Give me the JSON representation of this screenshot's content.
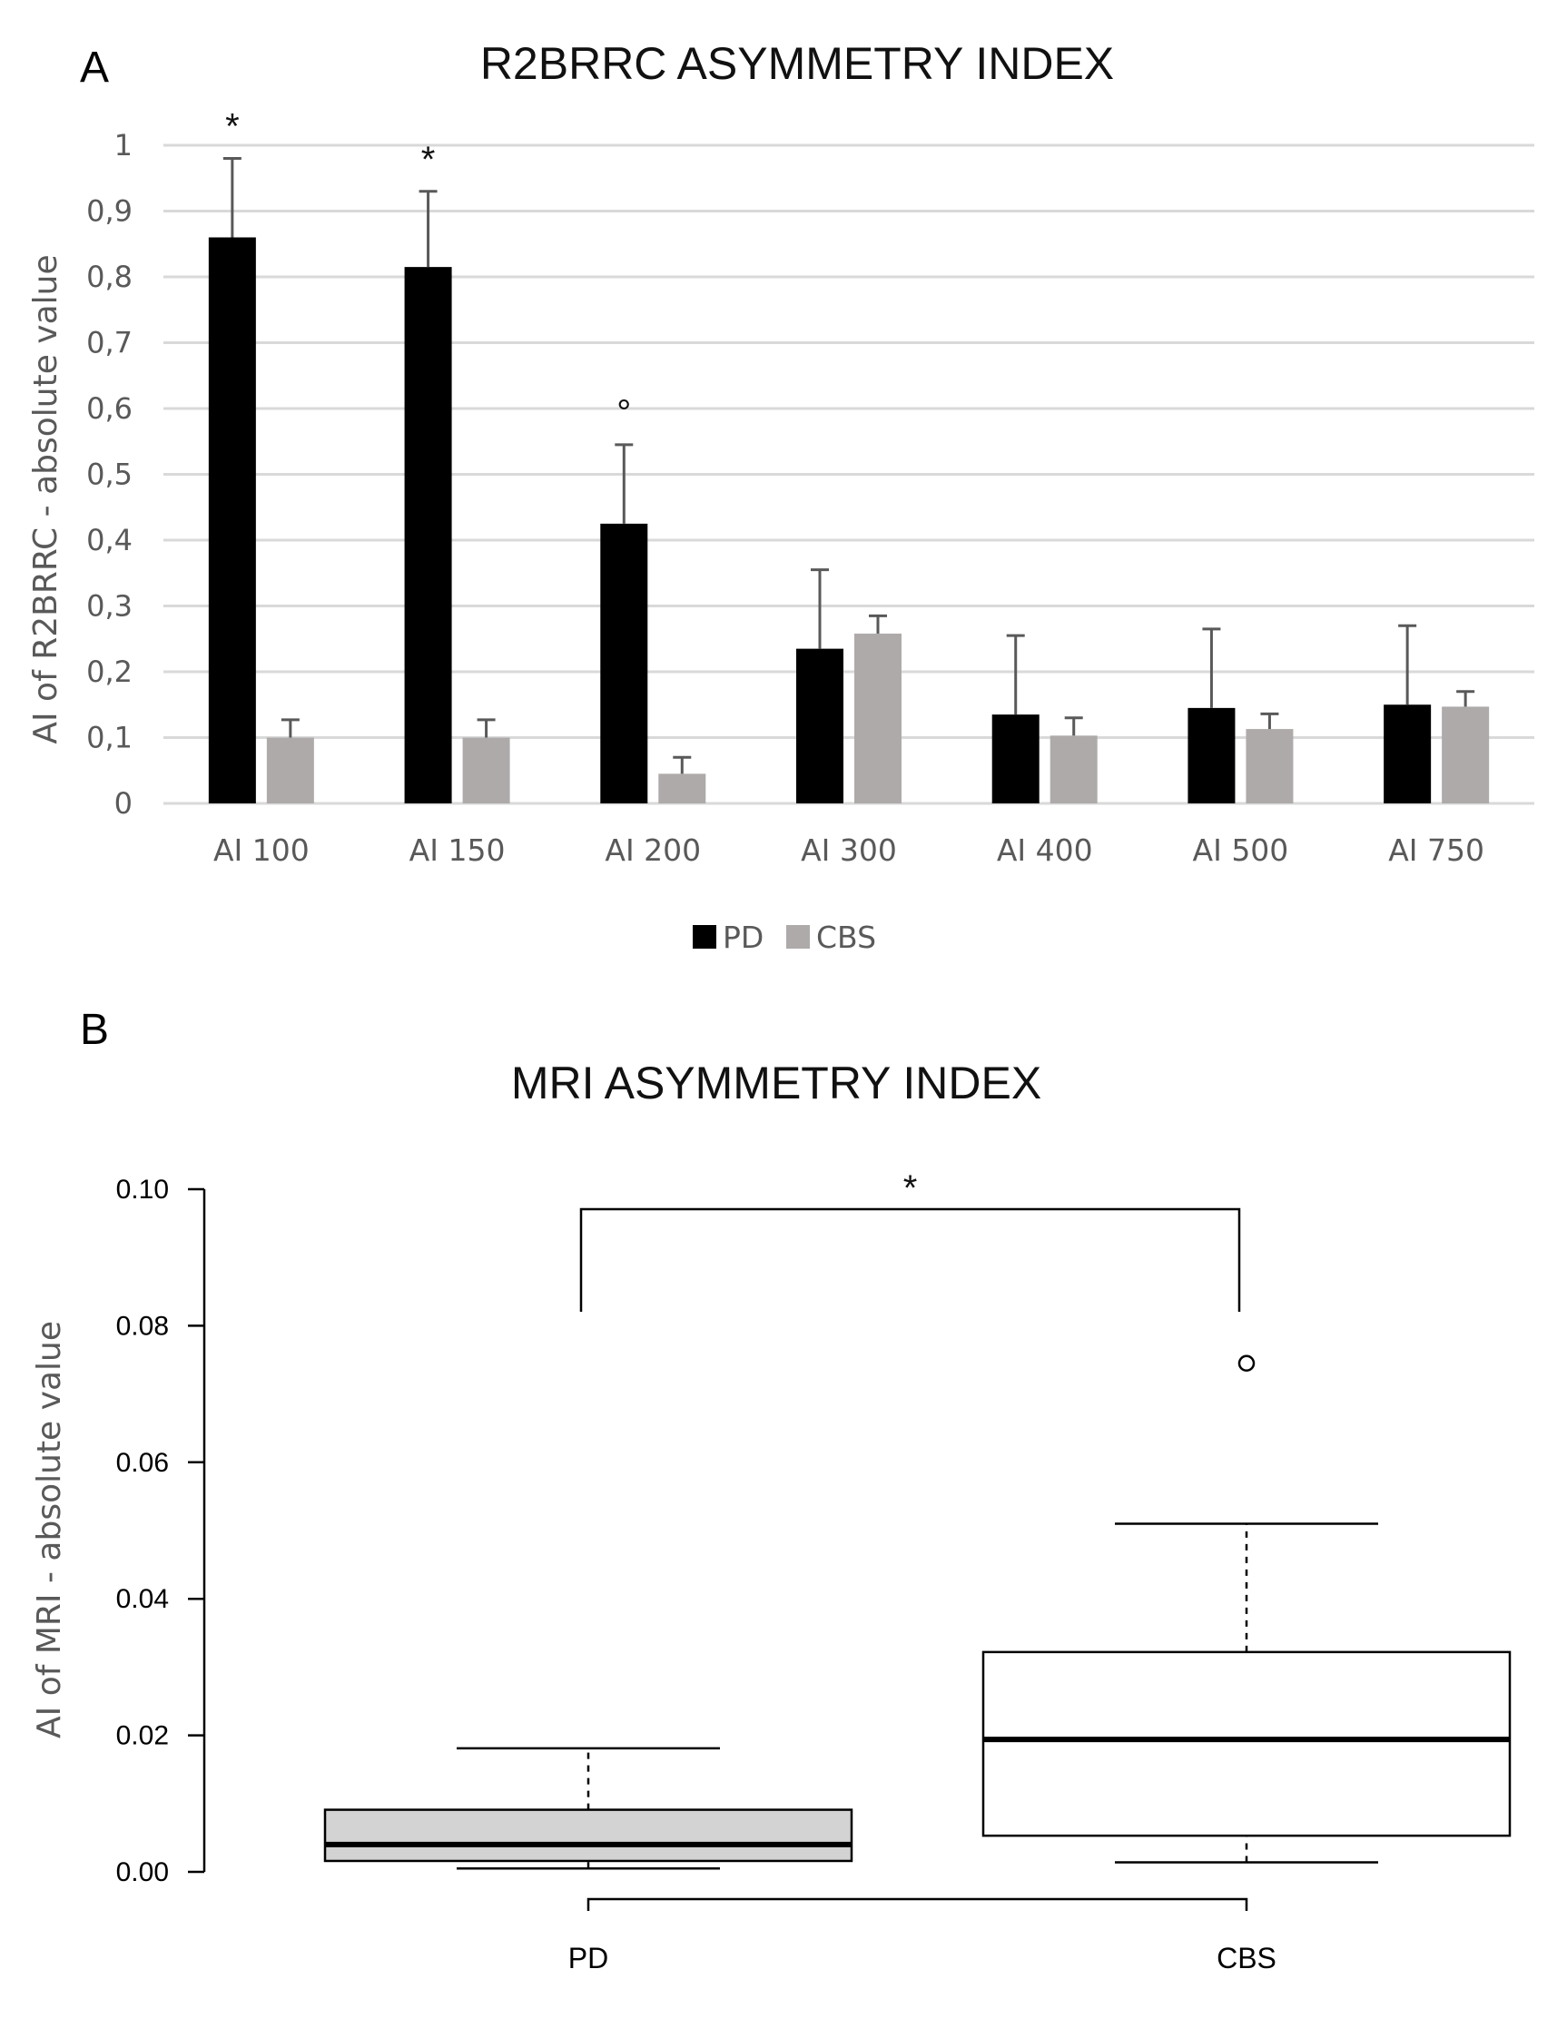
{
  "chart_data": [
    {
      "panel_label": "A",
      "type": "bar",
      "title": "R2BRRC ASYMMETRY INDEX",
      "ylabel": "AI of R2BRRC - absolute value",
      "xlabel": "",
      "ylim": [
        0,
        1
      ],
      "yticks": [
        "0",
        "0,1",
        "0,2",
        "0,3",
        "0,4",
        "0,5",
        "0,6",
        "0,7",
        "0,8",
        "0,9",
        "1"
      ],
      "categories": [
        "AI 100",
        "AI 150",
        "AI 200",
        "AI 300",
        "AI 400",
        "AI 500",
        "AI 750"
      ],
      "series": [
        {
          "name": "PD",
          "color": "#000000",
          "values": [
            0.86,
            0.815,
            0.425,
            0.235,
            0.135,
            0.145,
            0.15
          ],
          "errors": [
            0.12,
            0.115,
            0.12,
            0.12,
            0.12,
            0.12,
            0.12
          ]
        },
        {
          "name": "CBS",
          "color": "#aeaaaa",
          "values": [
            0.1,
            0.1,
            0.045,
            0.258,
            0.103,
            0.113,
            0.147
          ],
          "errors": [
            0.027,
            0.027,
            0.025,
            0.027,
            0.027,
            0.023,
            0.023
          ]
        }
      ],
      "annotations": [
        "*",
        "*",
        "°",
        "",
        "",
        "",
        ""
      ],
      "grid": true,
      "legend": "bottom-center"
    },
    {
      "panel_label": "B",
      "type": "box",
      "title": "MRI ASYMMETRY INDEX",
      "ylabel": "AI of MRI - absolute value",
      "xlabel": "",
      "ylim": [
        0,
        0.1
      ],
      "yticks": [
        "0.00",
        "0.02",
        "0.04",
        "0.06",
        "0.08",
        "0.10"
      ],
      "categories": [
        "PD",
        "CBS"
      ],
      "boxes": [
        {
          "name": "PD",
          "color": "#d3d3d3",
          "whisker_low": 0.0005,
          "q1": 0.0016,
          "median": 0.004,
          "q3": 0.0091,
          "whisker_high": 0.0181,
          "outliers": []
        },
        {
          "name": "CBS",
          "color": "#ffffff",
          "whisker_low": 0.0014,
          "q1": 0.0053,
          "median": 0.0194,
          "q3": 0.0322,
          "whisker_high": 0.051,
          "outliers": [
            0.0745
          ]
        }
      ],
      "significance": {
        "between": [
          "PD",
          "CBS"
        ],
        "label": "*"
      }
    }
  ]
}
